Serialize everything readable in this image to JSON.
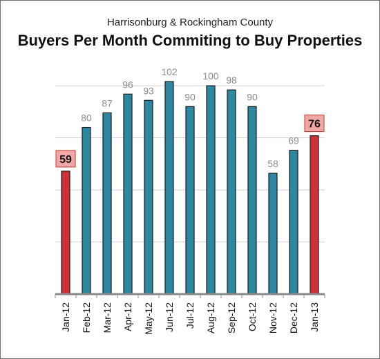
{
  "chart_data": {
    "type": "bar",
    "subtitle": "Harrisonburg & Rockingham County",
    "title": "Buyers Per Month Commiting to Buy Properties",
    "categories": [
      "Jan-12",
      "Feb-12",
      "Mar-12",
      "Apr-12",
      "May-12",
      "Jun-12",
      "Jul-12",
      "Aug-12",
      "Sep-12",
      "Oct-12",
      "Nov-12",
      "Dec-12",
      "Jan-13"
    ],
    "values": [
      59,
      80,
      87,
      96,
      93,
      102,
      90,
      100,
      98,
      90,
      58,
      69,
      76
    ],
    "highlight": [
      true,
      false,
      false,
      false,
      false,
      false,
      false,
      false,
      false,
      false,
      false,
      false,
      true
    ],
    "ylim": [
      0,
      110
    ],
    "grid": true,
    "colors": {
      "bar": "#2e87a0",
      "highlight_bar": "#cf3236",
      "highlight_label_bg": "#f2a7a7",
      "highlight_label_border": "#c0392b",
      "value_label": "#8c8c8c",
      "grid": "#d0d0d0",
      "axis": "#8a8a8a"
    }
  }
}
